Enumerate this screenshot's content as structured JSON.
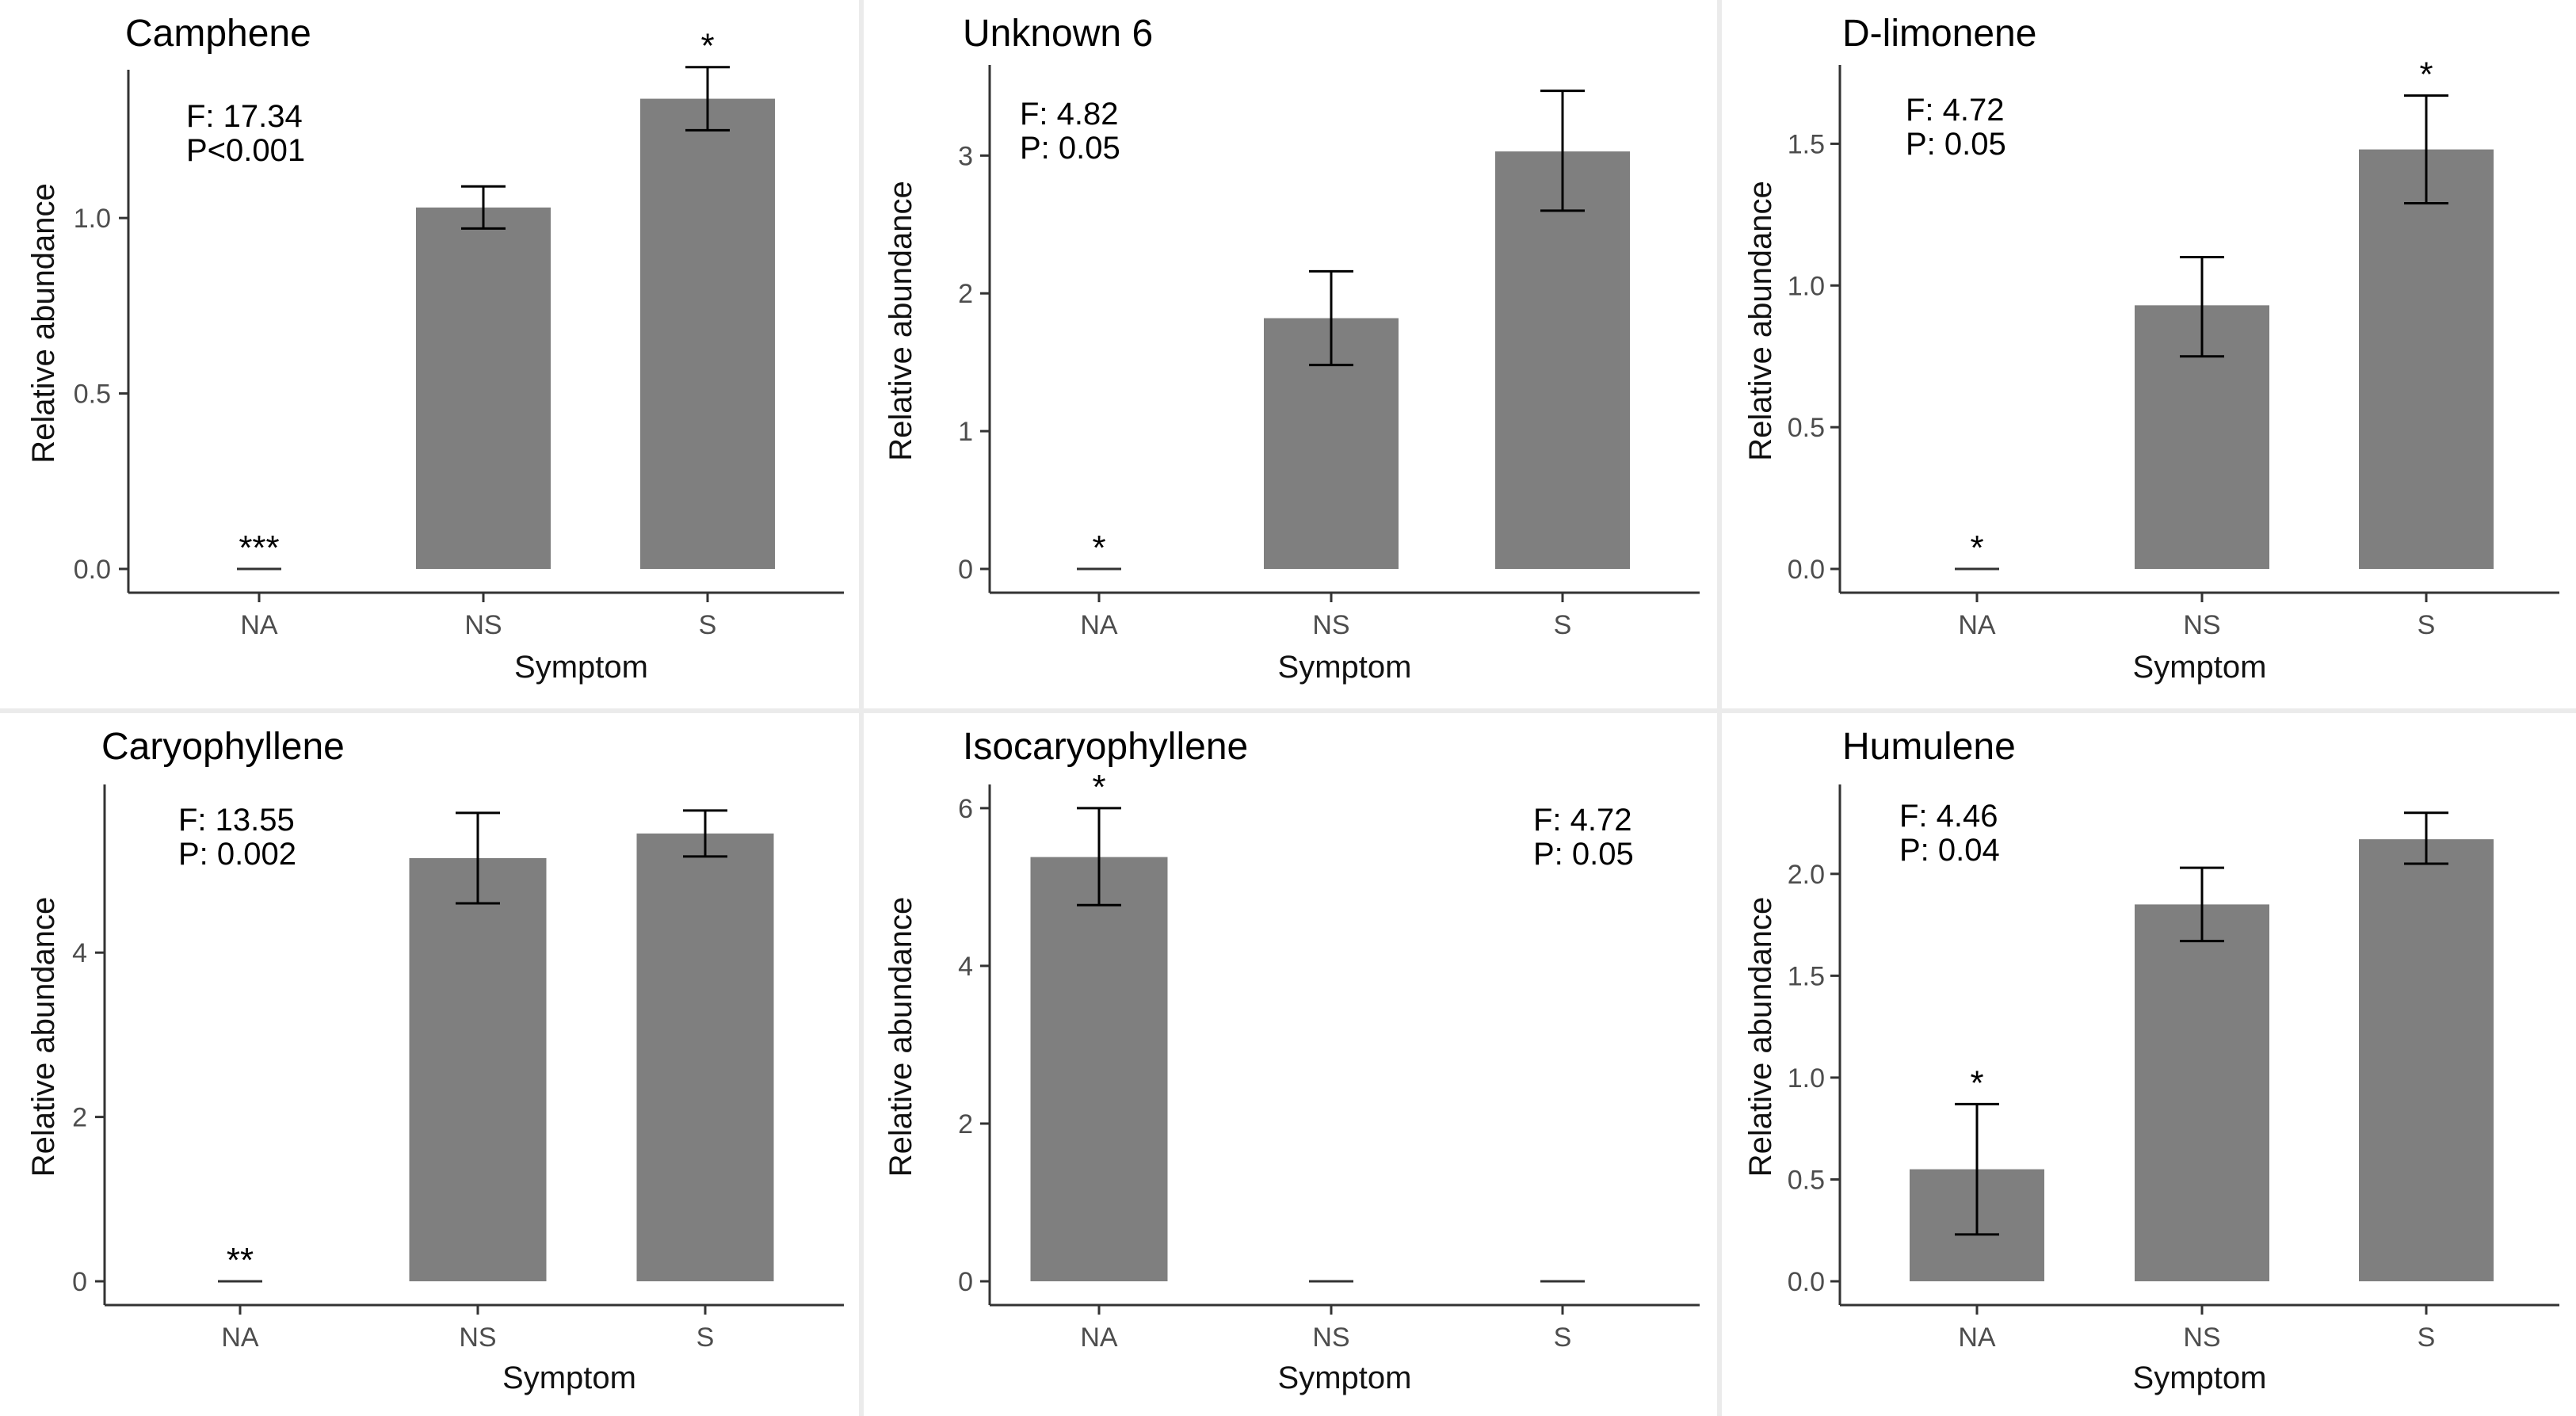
{
  "figure": {
    "colors": {
      "bar": "#7f7f7f",
      "text": "#000000",
      "tick_text": "#4d4d4d",
      "axis": "#333333"
    }
  },
  "chart_data": [
    {
      "type": "bar",
      "title": "Camphene",
      "xlabel": "Symptom",
      "ylabel": "Relative abundance",
      "categories": [
        "NA",
        "NS",
        "S"
      ],
      "values": [
        0.0,
        1.03,
        1.34
      ],
      "error_low": [
        0.0,
        0.97,
        1.25
      ],
      "error_high": [
        0.0,
        1.09,
        1.43
      ],
      "ylim": [
        0,
        1.4
      ],
      "yticks": [
        0.0,
        0.5,
        1.0
      ],
      "ytick_labels": [
        "0.0",
        "0.5",
        "1.0"
      ],
      "significance": [
        "***",
        "",
        "*"
      ],
      "stat_lines": [
        "F: 17.34",
        "P<0.001"
      ]
    },
    {
      "type": "bar",
      "title": "Unknown 6",
      "xlabel": "Symptom",
      "ylabel": "Relative abundance",
      "categories": [
        "NA",
        "NS",
        "S"
      ],
      "values": [
        0.0,
        1.82,
        3.03
      ],
      "error_low": [
        0.0,
        1.48,
        2.6
      ],
      "error_high": [
        0.0,
        2.16,
        3.47
      ],
      "ylim": [
        0,
        3.6
      ],
      "yticks": [
        0,
        1,
        2,
        3
      ],
      "ytick_labels": [
        "0",
        "1",
        "2",
        "3"
      ],
      "significance": [
        "*",
        "",
        ""
      ],
      "stat_lines": [
        "F: 4.82",
        "P: 0.05"
      ]
    },
    {
      "type": "bar",
      "title": "D-limonene",
      "xlabel": "Symptom",
      "ylabel": "Relative abundance",
      "categories": [
        "NA",
        "NS",
        "S"
      ],
      "values": [
        0.0,
        0.93,
        1.48
      ],
      "error_low": [
        0.0,
        0.75,
        1.29
      ],
      "error_high": [
        0.0,
        1.1,
        1.67
      ],
      "ylim": [
        0,
        1.75
      ],
      "yticks": [
        0.0,
        0.5,
        1.0,
        1.5
      ],
      "ytick_labels": [
        "0.0",
        "0.5",
        "1.0",
        "1.5"
      ],
      "significance": [
        "*",
        "",
        "*"
      ],
      "stat_lines": [
        "F: 4.72",
        "P: 0.05"
      ]
    },
    {
      "type": "bar",
      "title": "Caryophyllene",
      "xlabel": "Symptom",
      "ylabel": "Relative abundance",
      "categories": [
        "NA",
        "NS",
        "S"
      ],
      "values": [
        0.0,
        5.15,
        5.45
      ],
      "error_low": [
        0.0,
        4.6,
        5.17
      ],
      "error_high": [
        0.0,
        5.7,
        5.73
      ],
      "ylim": [
        0,
        5.95
      ],
      "yticks": [
        0,
        2,
        4
      ],
      "ytick_labels": [
        "0",
        "2",
        "4"
      ],
      "significance": [
        "**",
        "",
        ""
      ],
      "stat_lines": [
        "F: 13.55",
        "P: 0.002"
      ]
    },
    {
      "type": "bar",
      "title": "Isocaryophyllene",
      "xlabel": "Symptom",
      "ylabel": "Relative abundance",
      "categories": [
        "NA",
        "NS",
        "S"
      ],
      "values": [
        5.38,
        0.0,
        0.0
      ],
      "error_low": [
        4.77,
        0.0,
        0.0
      ],
      "error_high": [
        6.0,
        0.0,
        0.0
      ],
      "ylim": [
        0,
        6.2
      ],
      "yticks": [
        0,
        2,
        4,
        6
      ],
      "ytick_labels": [
        "0",
        "2",
        "4",
        "6"
      ],
      "significance": [
        "*",
        "",
        ""
      ],
      "stat_lines": [
        "F: 4.72",
        "P: 0.05"
      ]
    },
    {
      "type": "bar",
      "title": "Humulene",
      "xlabel": "Symptom",
      "ylabel": "Relative abundance",
      "categories": [
        "NA",
        "NS",
        "S"
      ],
      "values": [
        0.55,
        1.85,
        2.17
      ],
      "error_low": [
        0.23,
        1.67,
        2.05
      ],
      "error_high": [
        0.87,
        2.03,
        2.3
      ],
      "ylim": [
        0,
        2.4
      ],
      "yticks": [
        0.0,
        0.5,
        1.0,
        1.5,
        2.0
      ],
      "ytick_labels": [
        "0.0",
        "0.5",
        "1.0",
        "1.5",
        "2.0"
      ],
      "significance": [
        "*",
        "",
        ""
      ],
      "stat_lines": [
        "F: 4.46",
        "P: 0.04"
      ]
    }
  ]
}
